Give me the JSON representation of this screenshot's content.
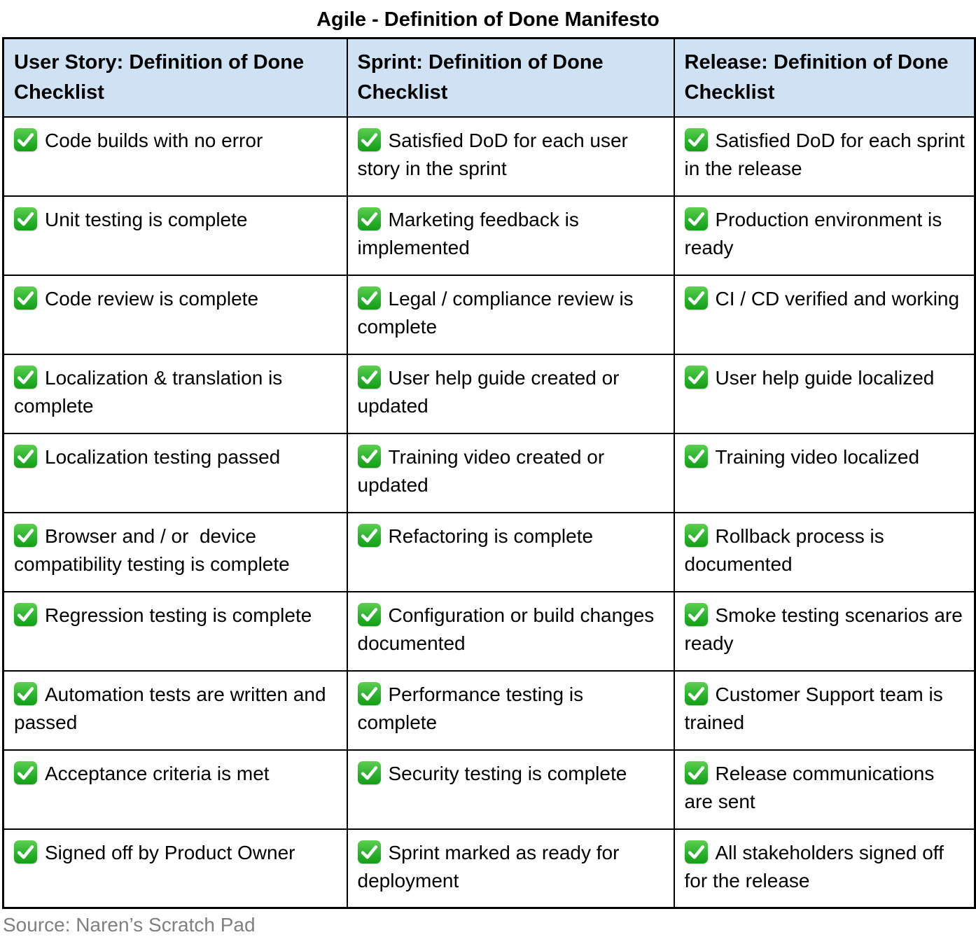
{
  "title": "Agile - Definition of Done Manifesto",
  "source_caption": "Source: Naren’s Scratch Pad",
  "colors": {
    "header_bg": "#cfe2f3",
    "border": "#000000",
    "check_green": "#2cb331",
    "check_tick": "#ffffff",
    "source_text": "#808080"
  },
  "icons": {
    "check": "check-icon"
  },
  "table": {
    "headers": [
      "User Story: Definition of Done Checklist",
      "Sprint: Definition of Done Checklist",
      "Release: Definition of Done Checklist"
    ],
    "rows": [
      [
        "Code builds with no error",
        "Satisfied DoD for each user story in the sprint",
        "Satisfied DoD for each sprint in the release"
      ],
      [
        "Unit testing is complete",
        "Marketing feedback is implemented",
        "Production environment is ready"
      ],
      [
        "Code review is complete",
        "Legal / compliance review is complete",
        "CI / CD verified and working"
      ],
      [
        "Localization & translation is complete",
        "User help guide created or updated",
        "User help guide localized"
      ],
      [
        "Localization testing passed",
        "Training video created or updated",
        "Training video localized"
      ],
      [
        "Browser and / or  device compatibility testing is complete",
        "Refactoring is complete",
        "Rollback process is documented"
      ],
      [
        "Regression testing is complete",
        "Configuration or build changes documented",
        "Smoke testing scenarios are ready"
      ],
      [
        "Automation tests are written and passed",
        "Performance testing is complete",
        "Customer Support team is trained"
      ],
      [
        "Acceptance criteria is met",
        "Security testing is complete",
        "Release communications are sent"
      ],
      [
        "Signed off by Product Owner",
        "Sprint marked as ready for deployment",
        "All stakeholders signed off for the release"
      ]
    ]
  }
}
